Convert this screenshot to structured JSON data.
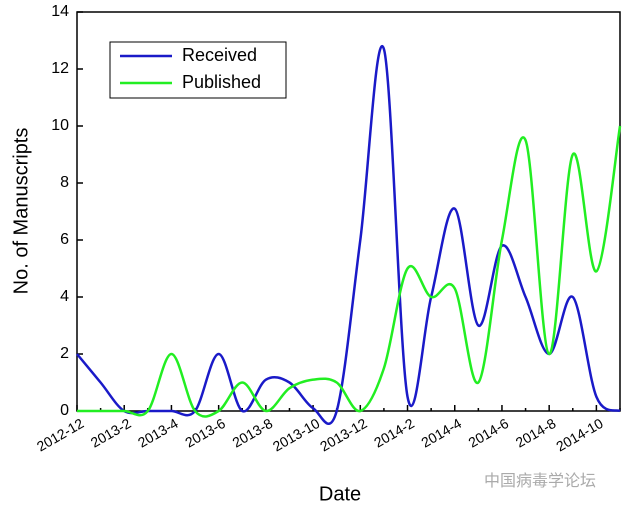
{
  "chart_data": {
    "type": "line",
    "xlabel": "Date",
    "ylabel": "No. of Manuscripts",
    "annotation": "中国病毒学论坛",
    "categories": [
      "2012-12",
      null,
      "2013-2",
      null,
      "2013-4",
      null,
      "2013-6",
      null,
      "2013-8",
      null,
      "2013-10",
      null,
      "2013-12",
      null,
      "2014-2",
      null,
      "2014-4",
      null,
      "2014-6",
      null,
      "2014-8",
      null,
      "2014-10",
      null
    ],
    "series": [
      {
        "name": "Received",
        "color": "#1a1ac8",
        "values": [
          2,
          1,
          0,
          0,
          0,
          0,
          2,
          0,
          1.1,
          1,
          0.1,
          0,
          6,
          12.7,
          0.5,
          4,
          7.1,
          3,
          5.8,
          4,
          2,
          4,
          0.5,
          0
        ]
      },
      {
        "name": "Published",
        "color": "#22ee22",
        "values": [
          0,
          0,
          0,
          0,
          2,
          0,
          0,
          1,
          0,
          0.8,
          1.1,
          1,
          0,
          1.5,
          5,
          4,
          4.3,
          1,
          6,
          9.5,
          2,
          9,
          4.9,
          10
        ]
      }
    ],
    "ylim": [
      0,
      14
    ],
    "yticks": [
      0,
      2,
      4,
      6,
      8,
      10,
      12,
      14
    ],
    "legend": "upper left"
  }
}
